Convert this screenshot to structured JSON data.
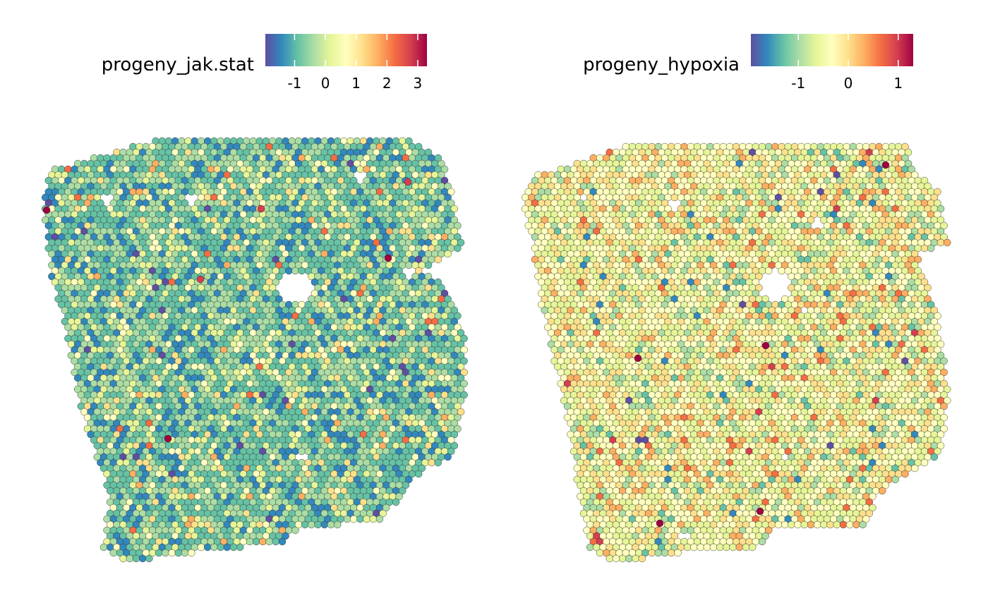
{
  "chart_data": [
    {
      "type": "scatter",
      "subtype": "spatial-spot-plot",
      "title": "",
      "legend": {
        "title": "progeny_jak.stat",
        "position": "top",
        "ticks": [
          "-1",
          "0",
          "1",
          "2",
          "3"
        ],
        "tick_values": [
          -1,
          0,
          1,
          2,
          3
        ],
        "range": [
          -1.95,
          3.3
        ]
      },
      "colorscale": [
        "#5e4fa2",
        "#3288bd",
        "#66c2a5",
        "#abdda4",
        "#e6f598",
        "#ffffbf",
        "#fee08b",
        "#fdae61",
        "#f46d43",
        "#d53e4f",
        "#9e0142"
      ],
      "dominant_range": [
        -1.5,
        1.2
      ],
      "spot_color_distribution": {
        "#3288bd": 0.14,
        "#66c2a5": 0.36,
        "#abdda4": 0.29,
        "#e6f598": 0.1,
        "#ffffbf": 0.06,
        "#fee08b": 0.03,
        "#fdae61": 0.01,
        "#f46d43": 0.005,
        "#5e4fa2": 0.005
      },
      "spot_count_estimate": 2700,
      "hotspot_colors": [
        "#d53e4f",
        "#9e0142"
      ]
    },
    {
      "type": "scatter",
      "subtype": "spatial-spot-plot",
      "title": "",
      "legend": {
        "title": "progeny_hypoxia",
        "position": "top",
        "ticks": [
          "-1",
          "0",
          "1"
        ],
        "tick_values": [
          -1,
          0,
          1
        ],
        "range": [
          -1.95,
          1.3
        ]
      },
      "colorscale": [
        "#5e4fa2",
        "#3288bd",
        "#66c2a5",
        "#abdda4",
        "#e6f598",
        "#ffffbf",
        "#fee08b",
        "#fdae61",
        "#f46d43",
        "#d53e4f",
        "#9e0142"
      ],
      "dominant_range": [
        -0.6,
        0.7
      ],
      "spot_color_distribution": {
        "#ffffbf": 0.32,
        "#e6f598": 0.28,
        "#fee08b": 0.17,
        "#abdda4": 0.1,
        "#fdae61": 0.07,
        "#66c2a5": 0.03,
        "#f46d43": 0.015,
        "#3288bd": 0.01,
        "#d53e4f": 0.003,
        "#5e4fa2": 0.002
      },
      "spot_count_estimate": 2700,
      "hotspot_colors": [
        "#9e0142"
      ]
    }
  ]
}
